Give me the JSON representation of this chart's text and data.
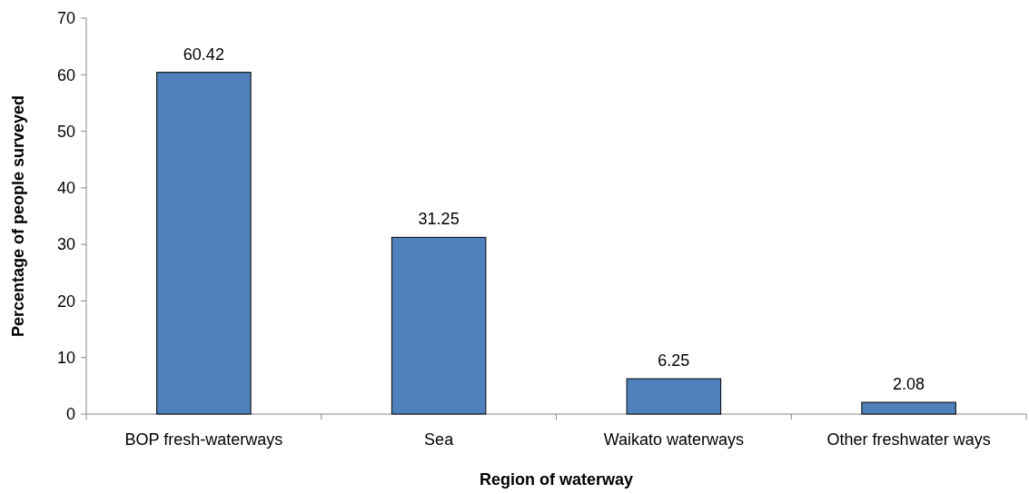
{
  "chart_data": {
    "type": "bar",
    "xlabel": "Region of waterway",
    "ylabel": "Percentage of people surveyed",
    "categories": [
      "BOP fresh-waterways",
      "Sea",
      "Waikato waterways",
      "Other freshwater ways"
    ],
    "values": [
      60.42,
      31.25,
      6.25,
      2.08
    ],
    "color": "#4f81bd",
    "ylim": [
      0,
      70
    ],
    "yticks": [
      0,
      10,
      20,
      30,
      40,
      50,
      60,
      70
    ],
    "data_labels": true
  }
}
